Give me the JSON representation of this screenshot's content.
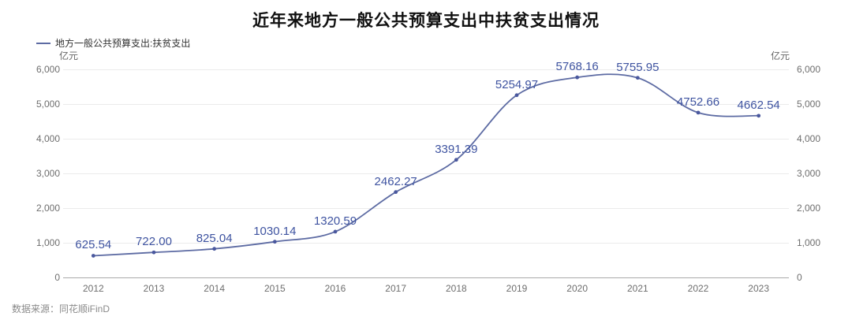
{
  "title": "近年来地方一般公共预算支出中扶贫支出情况",
  "legend": {
    "label": "地方一般公共预算支出:扶贫支出"
  },
  "axis_unit_left": "亿元",
  "axis_unit_right": "亿元",
  "source": "数据来源：同花顺iFinD",
  "colors": {
    "line": "#5d6ba3",
    "dot": "#4a589e",
    "data_label": "#3e53a0",
    "grid": "#ebebeb",
    "axis": "#a9a9a9",
    "tick_text": "#6e6e6e",
    "title_text": "#111111"
  },
  "chart_data": {
    "type": "line",
    "title": "近年来地方一般公共预算支出中扶贫支出情况",
    "categories": [
      "2012",
      "2013",
      "2014",
      "2015",
      "2016",
      "2017",
      "2018",
      "2019",
      "2020",
      "2021",
      "2022",
      "2023"
    ],
    "series": [
      {
        "name": "地方一般公共预算支出:扶贫支出",
        "values": [
          625.54,
          722.0,
          825.04,
          1030.14,
          1320.59,
          2462.27,
          3391.39,
          5254.97,
          5768.16,
          5755.95,
          4752.66,
          4662.54
        ]
      }
    ],
    "xlabel": "",
    "ylabel": "亿元",
    "ylabel_right": "亿元",
    "ylim": [
      0,
      6000
    ],
    "y_ticks": [
      0,
      1000,
      2000,
      3000,
      4000,
      5000,
      6000
    ],
    "grid": true,
    "smooth": true,
    "point_markers": true,
    "data_labels_decimals": 2,
    "legend_position": "top-left",
    "dual_y_axis": true
  }
}
